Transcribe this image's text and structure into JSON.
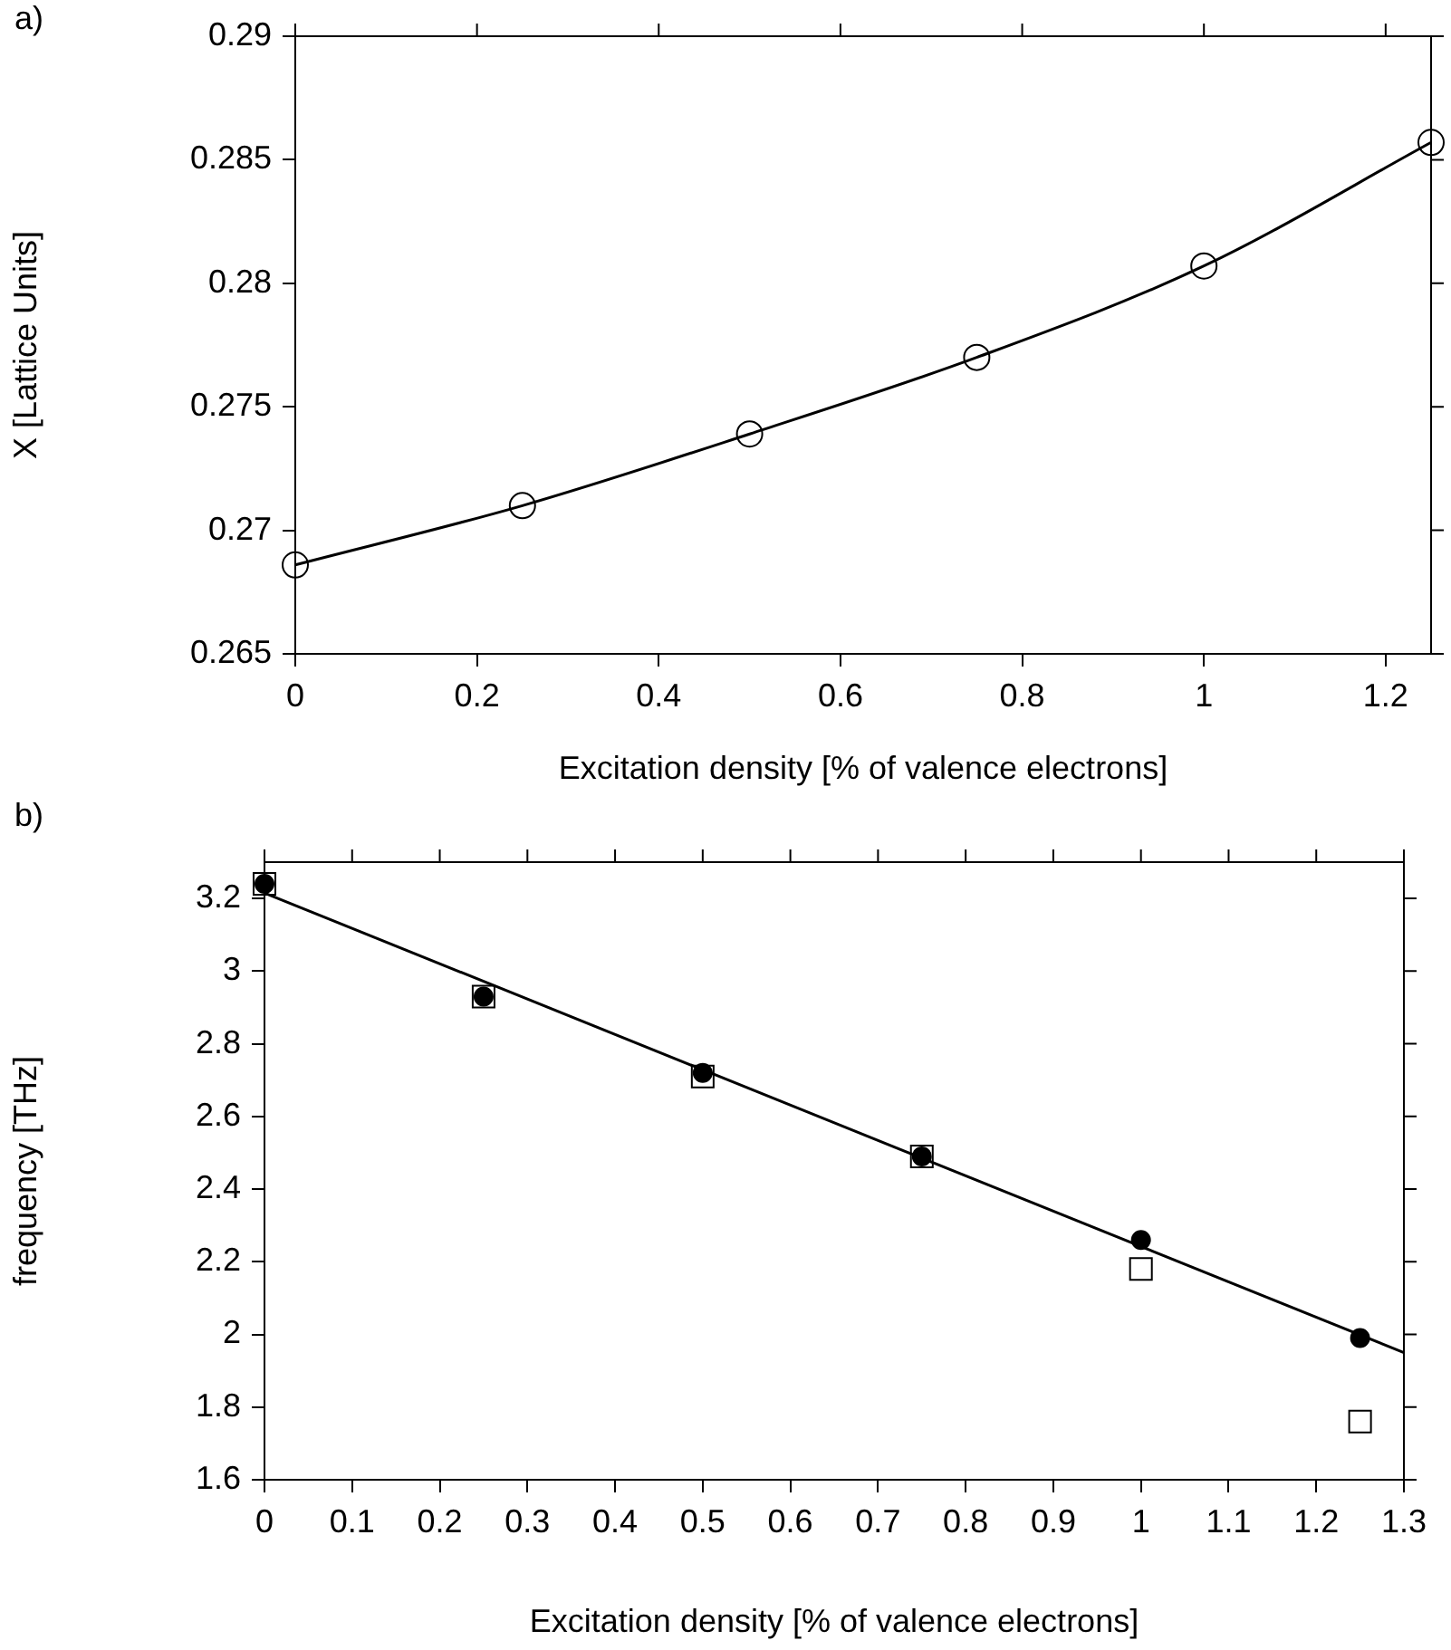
{
  "chart_data": [
    {
      "type": "scatter",
      "annotations": [
        "a)"
      ],
      "xlabel": "Excitation density [% of valence electrons]",
      "ylabel": "X [Lattice Units]",
      "x": [
        0,
        0.25,
        0.5,
        0.75,
        1,
        1.25
      ],
      "xlim": [
        0,
        1.25
      ],
      "xticks": [
        {
          "value": 0,
          "label": "0"
        },
        {
          "value": 0.2,
          "label": "0.2"
        },
        {
          "value": 0.4,
          "label": "0.4"
        },
        {
          "value": 0.6,
          "label": "0.6"
        },
        {
          "value": 0.8,
          "label": "0.8"
        },
        {
          "value": 1,
          "label": "1"
        },
        {
          "value": 1.2,
          "label": "1.2"
        }
      ],
      "ylim": [
        0.265,
        0.29
      ],
      "yticks": [
        0.265,
        0.27,
        0.275,
        0.28,
        0.285,
        0.29
      ],
      "grid": false,
      "legend": false,
      "series": [
        {
          "type": "scatter",
          "marker": "circle",
          "values": [
            0.2686,
            0.271,
            0.2739,
            0.277,
            0.2807,
            0.2857
          ]
        },
        {
          "type": "line",
          "marker": "none",
          "color": "#000000",
          "values": [
            0.2686,
            0.271,
            0.2739,
            0.277,
            0.2807,
            0.2857
          ]
        }
      ]
    },
    {
      "type": "scatter",
      "annotations": [
        "b)"
      ],
      "xlabel": "Excitation density [% of valence electrons]",
      "ylabel": "frequency [THz]",
      "x": [
        0,
        0.25,
        0.5,
        0.75,
        1,
        1.25
      ],
      "xlim": [
        0,
        1.3
      ],
      "xticks": [
        0,
        0.1,
        0.2,
        0.3,
        0.4,
        0.5,
        0.6,
        0.7,
        0.8,
        0.9,
        1,
        1.1,
        1.2,
        1.3
      ],
      "ylim": [
        1.6,
        3.3
      ],
      "yticks": [
        1.6,
        1.8,
        2,
        2.2,
        2.4,
        2.6,
        2.8,
        3,
        3.2
      ],
      "grid": false,
      "legend": false,
      "series": [
        {
          "type": "scatter",
          "marker": "square",
          "values": [
            3.24,
            2.93,
            2.71,
            2.49,
            2.18,
            1.76
          ]
        },
        {
          "type": "scatter",
          "marker": "circle",
          "color": "#000000",
          "values": [
            3.24,
            2.93,
            2.72,
            2.49,
            2.26,
            1.99
          ]
        },
        {
          "type": "line",
          "marker": "none",
          "color": "#000000",
          "x": [
            0,
            1.3
          ],
          "values": [
            3.215,
            1.95
          ]
        }
      ]
    }
  ]
}
